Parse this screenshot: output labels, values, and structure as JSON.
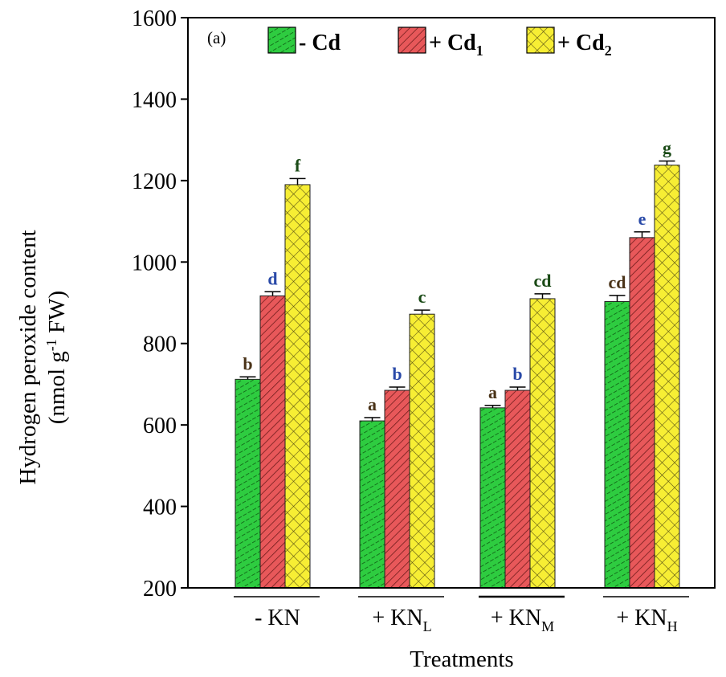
{
  "chart_data": {
    "type": "bar",
    "panel_label": "(a)",
    "ylabel_line1": "Hydrogen peroxide content",
    "ylabel_line2": "(nmol g",
    "ylabel_sup": "-1",
    "ylabel_line2_end": " FW)",
    "xlabel": "Treatments",
    "ylim": [
      200,
      1600
    ],
    "yticks": [
      200,
      400,
      600,
      800,
      1000,
      1200,
      1400,
      1600
    ],
    "grid": false,
    "legend_position": "top",
    "groups": [
      {
        "prefix": "- KN",
        "sub": ""
      },
      {
        "prefix": "+ KN",
        "sub": "L"
      },
      {
        "prefix": "+ KN",
        "sub": "M"
      },
      {
        "prefix": "+ KN",
        "sub": "H"
      }
    ],
    "series": [
      {
        "name_prefix": "- Cd",
        "name_sub": "",
        "color": "#2ecc40",
        "pattern": "hatch",
        "values": [
          712,
          610,
          642,
          903
        ],
        "errors": [
          6,
          8,
          6,
          15
        ],
        "letters": [
          "b",
          "a",
          "a",
          "cd"
        ]
      },
      {
        "name_prefix": "+ Cd",
        "name_sub": "1",
        "color": "#e8585a",
        "pattern": "diag",
        "values": [
          917,
          685,
          685,
          1060
        ],
        "errors": [
          10,
          8,
          8,
          14
        ],
        "letters": [
          "d",
          "b",
          "b",
          "e"
        ]
      },
      {
        "name_prefix": "+ Cd",
        "name_sub": "2",
        "color": "#f7ee34",
        "pattern": "cross",
        "values": [
          1190,
          872,
          910,
          1238
        ],
        "errors": [
          15,
          10,
          12,
          10
        ],
        "letters": [
          "f",
          "c",
          "cd",
          "g"
        ]
      }
    ],
    "letter_colors": [
      "#4a3318",
      "#2a4aa8",
      "#1a4a16"
    ]
  }
}
